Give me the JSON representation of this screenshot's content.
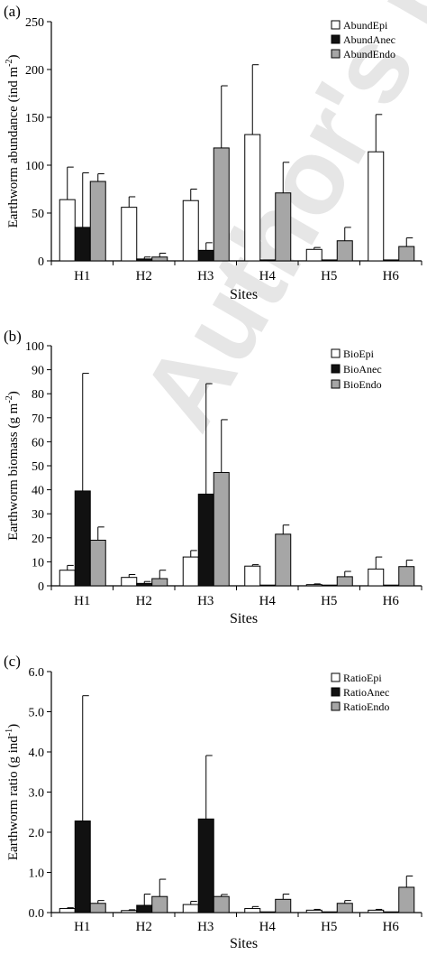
{
  "watermark": "Author's personal copy",
  "chart_data": [
    {
      "panel": "(a)",
      "type": "bar",
      "ylabel_main": "Earthworm abundance (ind m",
      "ylabel_sup": "-2",
      "ylabel_end": ")",
      "xlabel": "Sites",
      "categories": [
        "H1",
        "H2",
        "H3",
        "H4",
        "H5",
        "H6"
      ],
      "ylim": [
        0,
        250
      ],
      "yticks": [
        "0",
        "50",
        "100",
        "150",
        "200",
        "250"
      ],
      "series": [
        {
          "name": "AbundEpi",
          "color": "#ffffff",
          "values": [
            64,
            56,
            63,
            132,
            12,
            114
          ],
          "errors": [
            34,
            11,
            12,
            73,
            2,
            39
          ]
        },
        {
          "name": "AbundAnec",
          "color": "#111111",
          "values": [
            35,
            2,
            11,
            1,
            1,
            1
          ],
          "errors": [
            57,
            2,
            8,
            0,
            0,
            0
          ]
        },
        {
          "name": "AbundEndo",
          "color": "#a6a6a6",
          "values": [
            83,
            4,
            118,
            71,
            21,
            15
          ],
          "errors": [
            8,
            4,
            65,
            32,
            14,
            9
          ]
        }
      ],
      "legend_position": "top-right"
    },
    {
      "panel": "(b)",
      "type": "bar",
      "ylabel_main": "Earthworm biomass (g m",
      "ylabel_sup": "-2",
      "ylabel_end": ")",
      "xlabel": "Sites",
      "categories": [
        "H1",
        "H2",
        "H3",
        "H4",
        "H5",
        "H6"
      ],
      "ylim": [
        0,
        100
      ],
      "yticks": [
        "0",
        "10",
        "20",
        "30",
        "40",
        "50",
        "60",
        "70",
        "80",
        "90",
        "100"
      ],
      "series": [
        {
          "name": "BioEpi",
          "color": "#ffffff",
          "values": [
            6.5,
            3.5,
            12,
            8.2,
            0.5,
            7
          ],
          "errors": [
            2,
            1.2,
            2.7,
            0.6,
            0.3,
            5
          ]
        },
        {
          "name": "BioAnec",
          "color": "#111111",
          "values": [
            39.5,
            1,
            38.2,
            0.2,
            0.1,
            0.2
          ],
          "errors": [
            49,
            0.8,
            46,
            0,
            0,
            0
          ]
        },
        {
          "name": "BioEndo",
          "color": "#a6a6a6",
          "values": [
            19,
            3,
            47.2,
            21.5,
            3.8,
            8
          ],
          "errors": [
            5.5,
            3.5,
            22,
            3.8,
            2.2,
            2.7
          ]
        }
      ],
      "legend_position": "top-right"
    },
    {
      "panel": "(c)",
      "type": "bar",
      "ylabel_main": "Earthworm ratio (g ind",
      "ylabel_sup": "-1",
      "ylabel_end": ")",
      "xlabel": "Sites",
      "categories": [
        "H1",
        "H2",
        "H3",
        "H4",
        "H5",
        "H6"
      ],
      "ylim": [
        0,
        6
      ],
      "yticks": [
        "0.0",
        "1.0",
        "2.0",
        "3.0",
        "4.0",
        "5.0",
        "6.0"
      ],
      "series": [
        {
          "name": "RatioEpi",
          "color": "#ffffff",
          "values": [
            0.1,
            0.05,
            0.2,
            0.1,
            0.06,
            0.06
          ],
          "errors": [
            0.02,
            0.02,
            0.08,
            0.05,
            0.02,
            0.02
          ]
        },
        {
          "name": "RatioAnec",
          "color": "#111111",
          "values": [
            2.28,
            0.18,
            2.33,
            0.01,
            0.01,
            0.01
          ],
          "errors": [
            3.12,
            0.28,
            1.58,
            0,
            0,
            0
          ]
        },
        {
          "name": "RatioEndo",
          "color": "#a6a6a6",
          "values": [
            0.23,
            0.4,
            0.4,
            0.33,
            0.23,
            0.63
          ],
          "errors": [
            0.07,
            0.43,
            0.05,
            0.13,
            0.07,
            0.28
          ]
        }
      ],
      "legend_position": "top-right"
    }
  ]
}
